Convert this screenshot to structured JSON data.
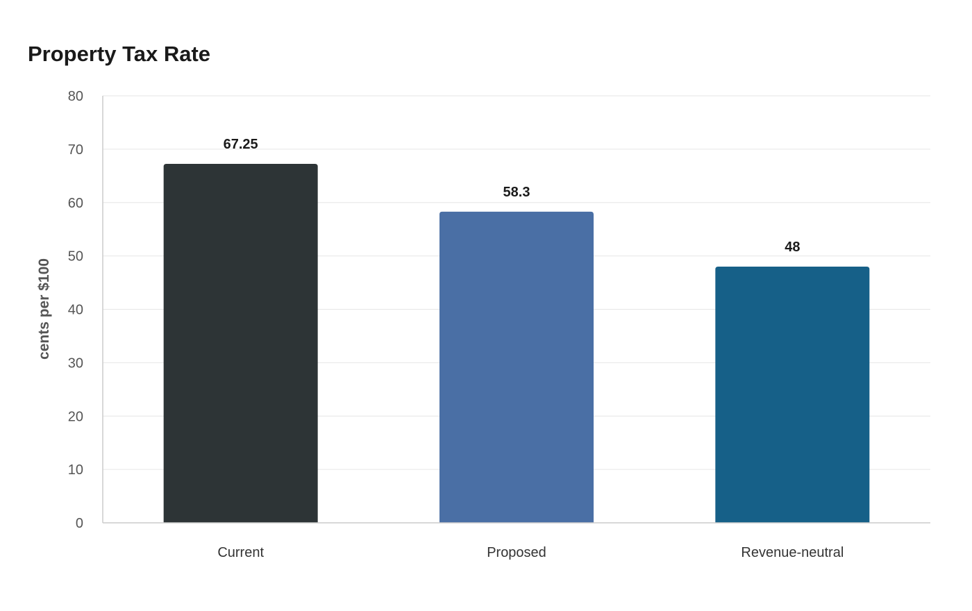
{
  "chart_data": {
    "type": "bar",
    "title": "Property Tax Rate",
    "xlabel": "",
    "ylabel": "cents per $100",
    "categories": [
      "Current",
      "Proposed",
      "Revenue-neutral"
    ],
    "values": [
      67.25,
      58.3,
      48
    ],
    "data_labels": [
      "67.25",
      "58.3",
      "48"
    ],
    "colors": [
      "#2d3436",
      "#4a6fa5",
      "#166088"
    ],
    "ylim": [
      0,
      80
    ],
    "yticks": [
      0,
      10,
      20,
      30,
      40,
      50,
      60,
      70,
      80
    ],
    "grid": true,
    "legend": "none"
  }
}
